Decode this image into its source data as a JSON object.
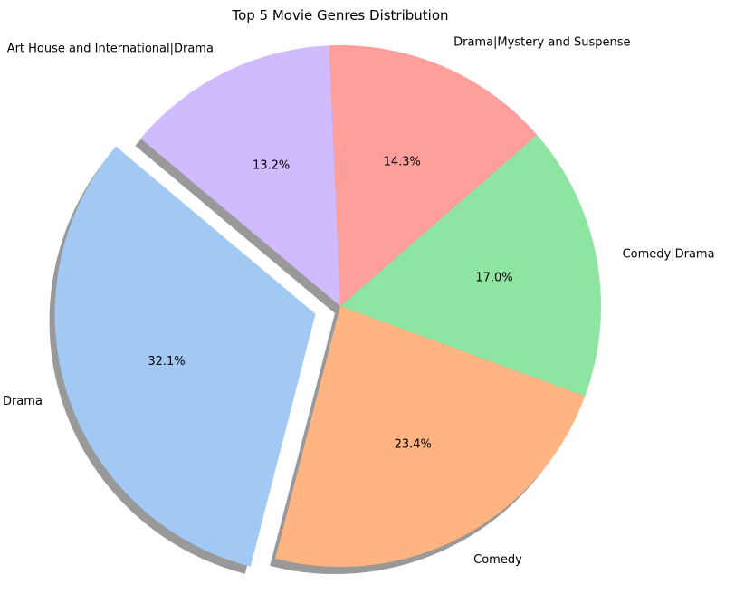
{
  "chart_data": {
    "type": "pie",
    "title": "Top 5 Movie Genres Distribution",
    "slices": [
      {
        "label": "Drama",
        "value": 32.1,
        "pct_label": "32.1%",
        "color": "#a1c9f4",
        "exploded": true
      },
      {
        "label": "Comedy",
        "value": 23.4,
        "pct_label": "23.4%",
        "color": "#ffb482",
        "exploded": false
      },
      {
        "label": "Comedy|Drama",
        "value": 17.0,
        "pct_label": "17.0%",
        "color": "#8de5a1",
        "exploded": false
      },
      {
        "label": "Drama|Mystery and Suspense",
        "value": 14.3,
        "pct_label": "14.3%",
        "color": "#ff9f9b",
        "exploded": false
      },
      {
        "label": "Art House and International|Drama",
        "value": 13.2,
        "pct_label": "13.2%",
        "color": "#d0bbff",
        "exploded": false
      }
    ],
    "start_angle_deg": 140,
    "direction": "counterclockwise",
    "shadow": true,
    "legend": "none"
  }
}
